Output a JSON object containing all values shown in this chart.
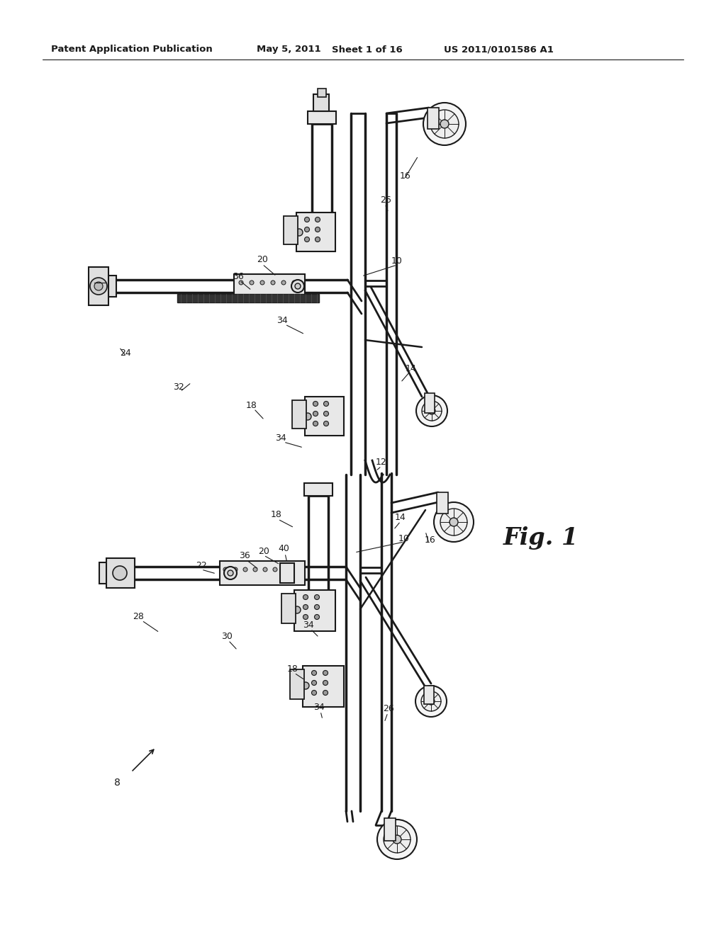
{
  "background_color": "#ffffff",
  "header_line1": "Patent Application Publication",
  "header_date": "May 5, 2011",
  "header_sheet": "Sheet 1 of 16",
  "header_patent": "US 2011/0101586 A1",
  "fig_label": "Fig. 1",
  "dc": "#1a1a1a"
}
